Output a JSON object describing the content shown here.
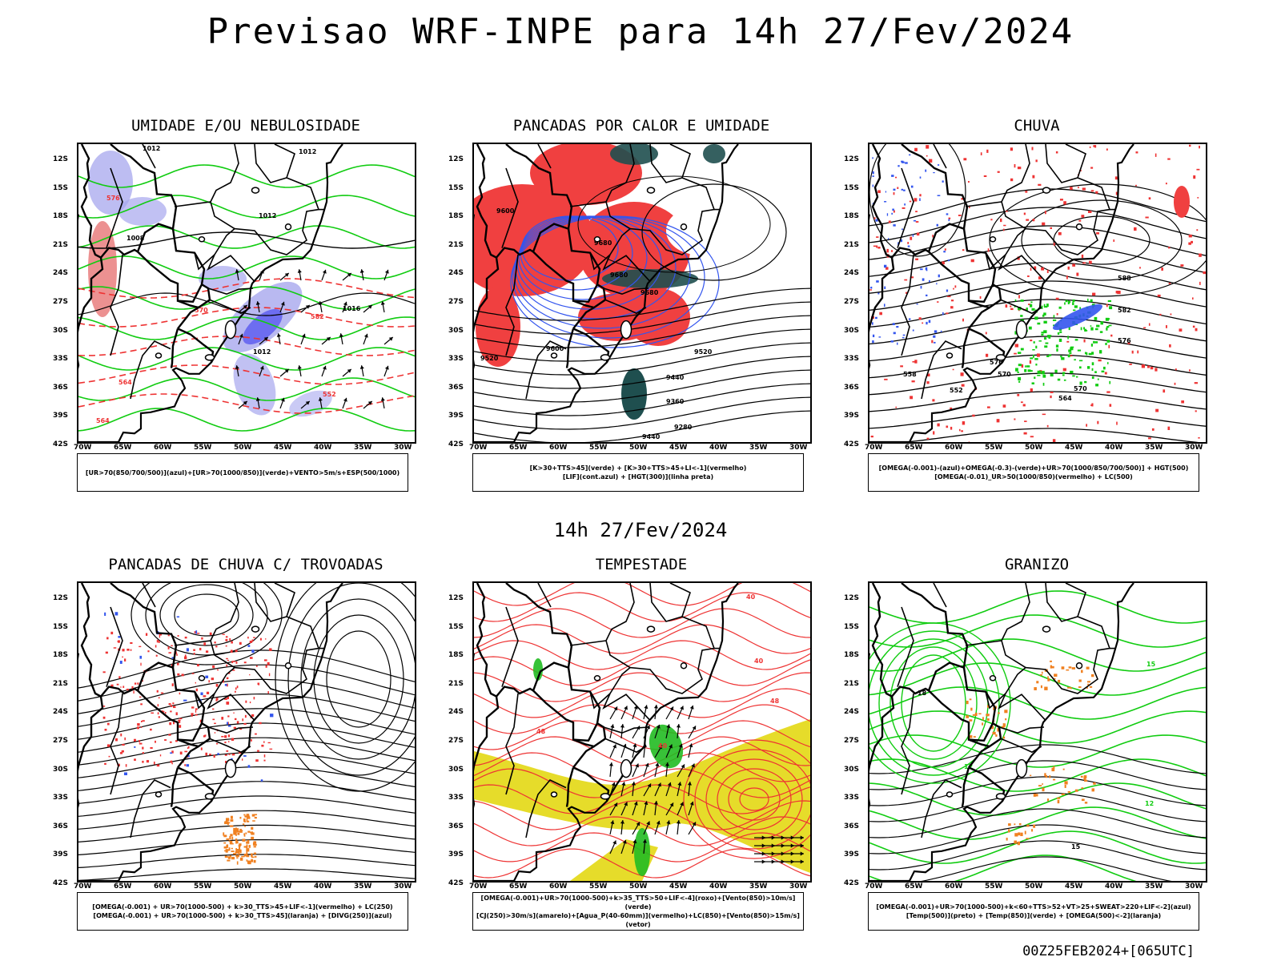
{
  "title": "Previsao WRF-INPE  para 14h 27/Fev/2024",
  "subtitle": "14h 27/Fev/2024",
  "footer": "00Z25FEB2024+[065UTC]",
  "axes": {
    "lat": [
      "12S",
      "15S",
      "18S",
      "21S",
      "24S",
      "27S",
      "30S",
      "33S",
      "36S",
      "39S",
      "42S"
    ],
    "lon": [
      "70W",
      "65W",
      "60W",
      "55W",
      "50W",
      "45W",
      "40W",
      "35W",
      "30W"
    ]
  },
  "panels": [
    {
      "title": "UMIDADE E/OU NEBULOSIDADE",
      "legend": [
        "[UR>70(850/700/500)](azul)+[UR>70(1000/850)](verde)+VENTO>5m/s+ESP(500/1000)"
      ]
    },
    {
      "title": "PANCADAS POR CALOR E UMIDADE",
      "legend": [
        "[K>30+TTS>45](verde) + [K>30+TTS>45+LI<-1](vermelho)",
        "[LIF](cont.azul) + [HGT(300)](linha preta)"
      ]
    },
    {
      "title": "CHUVA",
      "legend": [
        "[OMEGA(-0.001)-(azul)+OMEGA(-0.3)-(verde)+UR>70(1000/850/700/500)] + HGT(500)",
        "[OMEGA(-0.01)_UR>50(1000/850)(vermelho) + LC(500)"
      ]
    },
    {
      "title": "PANCADAS DE CHUVA C/ TROVOADAS",
      "legend": [
        "[OMEGA(-0.001) + UR>70(1000-500) + k>30_TTS>45+LIF<-1](vermelho) + LC(250)",
        "[OMEGA(-0.001) + UR>70(1000-500) + k>30_TTS>45](laranja) + [DIVG(250)](azul)"
      ]
    },
    {
      "title": "TEMPESTADE",
      "legend": [
        "[OMEGA(-0.001)+UR>70(1000-500)+k>35_TTS>50+LIF<-4](roxo)+[Vento(850)>10m/s](verde)",
        "[CJ(250)>30m/s](amarelo)+[Agua_P(40-60mm)](vermelho)+LC(850)+[Vento(850)>15m/s](vetor)"
      ]
    },
    {
      "title": "GRANIZO",
      "legend": [
        "[OMEGA(-0.001)+UR>70(1000-500)+k<60+TTS>52+VT>25+SWEAT>220+LIF<-2](azul)",
        "[Temp(500)](preto) + [Temp(850)](verde) + [OMEGA(500)<-2](laranja)"
      ]
    }
  ],
  "contour_labels": {
    "p1": [
      "1012",
      "1012",
      "1012",
      "1008",
      "1016",
      "1012",
      "576",
      "570",
      "564",
      "582",
      "552",
      "564"
    ],
    "p2": [
      "9600",
      "9680",
      "9680",
      "9520",
      "9600",
      "9520",
      "9440",
      "9360",
      "9280",
      "9440",
      "9680"
    ],
    "p3": [
      "588",
      "582",
      "576",
      "570",
      "564",
      "558",
      "552",
      "576",
      "570"
    ],
    "p5": [
      "40",
      "40",
      "48",
      "48",
      "40"
    ],
    "p6": [
      "15",
      "18",
      "12",
      "15",
      "12"
    ]
  },
  "colors": {
    "blue_shade": "#a7a7ee",
    "green_line": "#11cc11",
    "red_line": "#ee3333",
    "red_fill": "#f04040",
    "dark_teal": "#1f4f4f",
    "yellow_fill": "#e6dc2a",
    "orange": "#f08020",
    "blue": "#2233ee"
  }
}
